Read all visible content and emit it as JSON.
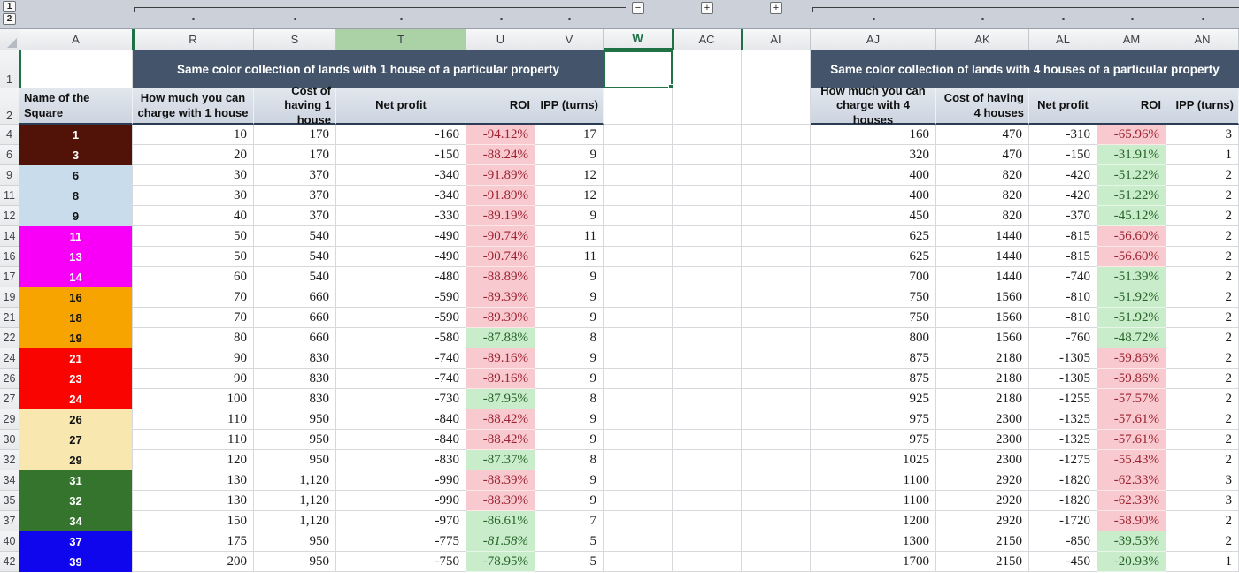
{
  "app": {
    "kind": "spreadsheet-grid"
  },
  "outline": {
    "level_buttons": [
      "1",
      "2"
    ],
    "collapse_label": "−",
    "expand_labels": [
      "+",
      "+"
    ]
  },
  "columns": [
    {
      "id": "A"
    },
    {
      "id": "R"
    },
    {
      "id": "S"
    },
    {
      "id": "T"
    },
    {
      "id": "U"
    },
    {
      "id": "V"
    },
    {
      "id": "W"
    },
    {
      "id": "AC"
    },
    {
      "id": "AI"
    },
    {
      "id": "AJ"
    },
    {
      "id": "AK"
    },
    {
      "id": "AL"
    },
    {
      "id": "AM"
    },
    {
      "id": "AN"
    }
  ],
  "selection": {
    "active_cell": "W1",
    "highlighted_column": "T"
  },
  "row1_numbers": [
    "1",
    "2"
  ],
  "name_column_header": "Name of the Square",
  "tables": [
    {
      "title": "Same color collection of lands with 1 house of a particular property",
      "headers": [
        "How much you can charge with 1 house",
        "Cost of having\n1 house",
        "Net profit",
        "ROI",
        "IPP (turns)"
      ]
    },
    {
      "title": "Same color collection of lands with 4 houses of a particular property",
      "headers": [
        "How much you can charge with 4 houses",
        "Cost of having\n4 houses",
        "Net profit",
        "ROI",
        "IPP (turns)"
      ]
    }
  ],
  "colors": {
    "slate_header": "#44546a",
    "accent_green": "#1e7145",
    "roi_negative_fill": "#f8c9cf",
    "roi_negative_text": "#9c2331",
    "roi_better_fill": "#c9ecca",
    "roi_better_text": "#27642a",
    "groups": {
      "brown": {
        "bg": "#511208",
        "text": "#ffffff"
      },
      "lightblue": {
        "bg": "#c9dcec",
        "text": "#111111"
      },
      "magenta": {
        "bg": "#f800f8",
        "text": "#ffffff"
      },
      "orange": {
        "bg": "#f7a400",
        "text": "#111111"
      },
      "red": {
        "bg": "#f90400",
        "text": "#ffffff"
      },
      "yellow": {
        "bg": "#f8e7af",
        "text": "#111111"
      },
      "green": {
        "bg": "#35742c",
        "text": "#ffffff"
      },
      "blue": {
        "bg": "#0f06ee",
        "text": "#ffffff"
      }
    }
  },
  "rows": [
    {
      "n": "4",
      "sq": "1",
      "g": "brown",
      "gap": true,
      "r": "10",
      "s": "170",
      "t": "-160",
      "u": "-94.12%",
      "uc": "pink",
      "v": "17",
      "aj": "160",
      "ak": "470",
      "al": "-310",
      "am": "-65.96%",
      "amc": "pink",
      "an": "3",
      "fl": []
    },
    {
      "n": "6",
      "sq": "3",
      "g": "brown",
      "gap": true,
      "r": "20",
      "s": "170",
      "t": "-150",
      "u": "-88.24%",
      "uc": "pink",
      "v": "9",
      "aj": "320",
      "ak": "470",
      "al": "-150",
      "am": "-31.91%",
      "amc": "green",
      "an": "1",
      "fl": [
        "ak",
        "al",
        "am",
        "an"
      ]
    },
    {
      "n": "9",
      "sq": "6",
      "g": "lightblue",
      "gap": true,
      "r": "30",
      "s": "370",
      "t": "-340",
      "u": "-91.89%",
      "uc": "pink",
      "v": "12",
      "aj": "400",
      "ak": "820",
      "al": "-420",
      "am": "-51.22%",
      "amc": "green",
      "an": "2",
      "fl": []
    },
    {
      "n": "11",
      "sq": "8",
      "g": "lightblue",
      "gap": true,
      "r": "30",
      "s": "370",
      "t": "-340",
      "u": "-91.89%",
      "uc": "pink",
      "v": "12",
      "aj": "400",
      "ak": "820",
      "al": "-420",
      "am": "-51.22%",
      "amc": "green",
      "an": "2",
      "fl": []
    },
    {
      "n": "12",
      "sq": "9",
      "g": "lightblue",
      "gap": false,
      "r": "40",
      "s": "370",
      "t": "-330",
      "u": "-89.19%",
      "uc": "pink",
      "v": "9",
      "aj": "450",
      "ak": "820",
      "al": "-370",
      "am": "-45.12%",
      "amc": "green",
      "an": "2",
      "fl": []
    },
    {
      "n": "14",
      "sq": "11",
      "g": "magenta",
      "gap": true,
      "r": "50",
      "s": "540",
      "t": "-490",
      "u": "-90.74%",
      "uc": "pink",
      "v": "11",
      "aj": "625",
      "ak": "1440",
      "al": "-815",
      "am": "-56.60%",
      "amc": "pink",
      "an": "2",
      "fl": [
        "al",
        "am",
        "an"
      ]
    },
    {
      "n": "16",
      "sq": "13",
      "g": "magenta",
      "gap": true,
      "r": "50",
      "s": "540",
      "t": "-490",
      "u": "-90.74%",
      "uc": "pink",
      "v": "11",
      "aj": "625",
      "ak": "1440",
      "al": "-815",
      "am": "-56.60%",
      "amc": "pink",
      "an": "2",
      "fl": []
    },
    {
      "n": "17",
      "sq": "14",
      "g": "magenta",
      "gap": false,
      "r": "60",
      "s": "540",
      "t": "-480",
      "u": "-88.89%",
      "uc": "pink",
      "v": "9",
      "aj": "700",
      "ak": "1440",
      "al": "-740",
      "am": "-51.39%",
      "amc": "green",
      "an": "2",
      "fl": []
    },
    {
      "n": "19",
      "sq": "16",
      "g": "orange",
      "gap": true,
      "r": "70",
      "s": "660",
      "t": "-590",
      "u": "-89.39%",
      "uc": "pink",
      "v": "9",
      "aj": "750",
      "ak": "1560",
      "al": "-810",
      "am": "-51.92%",
      "amc": "green",
      "an": "2",
      "fl": []
    },
    {
      "n": "21",
      "sq": "18",
      "g": "orange",
      "gap": true,
      "r": "70",
      "s": "660",
      "t": "-590",
      "u": "-89.39%",
      "uc": "pink",
      "v": "9",
      "aj": "750",
      "ak": "1560",
      "al": "-810",
      "am": "-51.92%",
      "amc": "green",
      "an": "2",
      "fl": []
    },
    {
      "n": "22",
      "sq": "19",
      "g": "orange",
      "gap": false,
      "r": "80",
      "s": "660",
      "t": "-580",
      "u": "-87.88%",
      "uc": "green",
      "v": "8",
      "aj": "800",
      "ak": "1560",
      "al": "-760",
      "am": "-48.72%",
      "amc": "green",
      "an": "2",
      "fl": []
    },
    {
      "n": "24",
      "sq": "21",
      "g": "red",
      "gap": true,
      "r": "90",
      "s": "830",
      "t": "-740",
      "u": "-89.16%",
      "uc": "pink",
      "v": "9",
      "aj": "875",
      "ak": "2180",
      "al": "-1305",
      "am": "-59.86%",
      "amc": "pink",
      "an": "2",
      "fl": [
        "ak",
        "al",
        "am",
        "an"
      ]
    },
    {
      "n": "26",
      "sq": "23",
      "g": "red",
      "gap": true,
      "r": "90",
      "s": "830",
      "t": "-740",
      "u": "-89.16%",
      "uc": "pink",
      "v": "9",
      "aj": "875",
      "ak": "2180",
      "al": "-1305",
      "am": "-59.86%",
      "amc": "pink",
      "an": "2",
      "fl": []
    },
    {
      "n": "27",
      "sq": "24",
      "g": "red",
      "gap": false,
      "r": "100",
      "s": "830",
      "t": "-730",
      "u": "-87.95%",
      "uc": "green",
      "v": "8",
      "aj": "925",
      "ak": "2180",
      "al": "-1255",
      "am": "-57.57%",
      "amc": "pink",
      "an": "2",
      "fl": []
    },
    {
      "n": "29",
      "sq": "26",
      "g": "yellow",
      "gap": true,
      "r": "110",
      "s": "950",
      "t": "-840",
      "u": "-88.42%",
      "uc": "pink",
      "v": "9",
      "aj": "975",
      "ak": "2300",
      "al": "-1325",
      "am": "-57.61%",
      "amc": "pink",
      "an": "2",
      "fl": []
    },
    {
      "n": "30",
      "sq": "27",
      "g": "yellow",
      "gap": false,
      "r": "110",
      "s": "950",
      "t": "-840",
      "u": "-88.42%",
      "uc": "pink",
      "v": "9",
      "aj": "975",
      "ak": "2300",
      "al": "-1325",
      "am": "-57.61%",
      "amc": "pink",
      "an": "2",
      "fl": []
    },
    {
      "n": "32",
      "sq": "29",
      "g": "yellow",
      "gap": true,
      "r": "120",
      "s": "950",
      "t": "-830",
      "u": "-87.37%",
      "uc": "green",
      "v": "8",
      "aj": "1025",
      "ak": "2300",
      "al": "-1275",
      "am": "-55.43%",
      "amc": "pink",
      "an": "2",
      "fl": [
        "al",
        "am",
        "an"
      ]
    },
    {
      "n": "34",
      "sq": "31",
      "g": "green",
      "gap": true,
      "r": "130",
      "s": "1,120",
      "t": "-990",
      "u": "-88.39%",
      "uc": "pink",
      "v": "9",
      "aj": "1100",
      "ak": "2920",
      "al": "-1820",
      "am": "-62.33%",
      "amc": "pink",
      "an": "3",
      "fl": []
    },
    {
      "n": "35",
      "sq": "32",
      "g": "green",
      "gap": false,
      "r": "130",
      "s": "1,120",
      "t": "-990",
      "u": "-88.39%",
      "uc": "pink",
      "v": "9",
      "aj": "1100",
      "ak": "2920",
      "al": "-1820",
      "am": "-62.33%",
      "amc": "pink",
      "an": "3",
      "fl": []
    },
    {
      "n": "37",
      "sq": "34",
      "g": "green",
      "gap": true,
      "r": "150",
      "s": "1,120",
      "t": "-970",
      "u": "-86.61%",
      "uc": "green",
      "v": "7",
      "aj": "1200",
      "ak": "2920",
      "al": "-1720",
      "am": "-58.90%",
      "amc": "pink",
      "an": "2",
      "fl": []
    },
    {
      "n": "40",
      "sq": "37",
      "g": "blue",
      "gap": true,
      "r": "175",
      "s": "950",
      "t": "-775",
      "u": "-81.58%",
      "uc": "green",
      "ui": true,
      "v": "5",
      "aj": "1300",
      "ak": "2150",
      "al": "-850",
      "am": "-39.53%",
      "amc": "green",
      "an": "2",
      "fl": [
        "ak",
        "al",
        "am",
        "an"
      ]
    },
    {
      "n": "42",
      "sq": "39",
      "g": "blue",
      "gap": true,
      "r": "200",
      "s": "950",
      "t": "-750",
      "u": "-78.95%",
      "uc": "green",
      "v": "5",
      "aj": "1700",
      "ak": "2150",
      "al": "-450",
      "am": "-20.93%",
      "amc": "green",
      "an": "1",
      "fl": []
    }
  ]
}
